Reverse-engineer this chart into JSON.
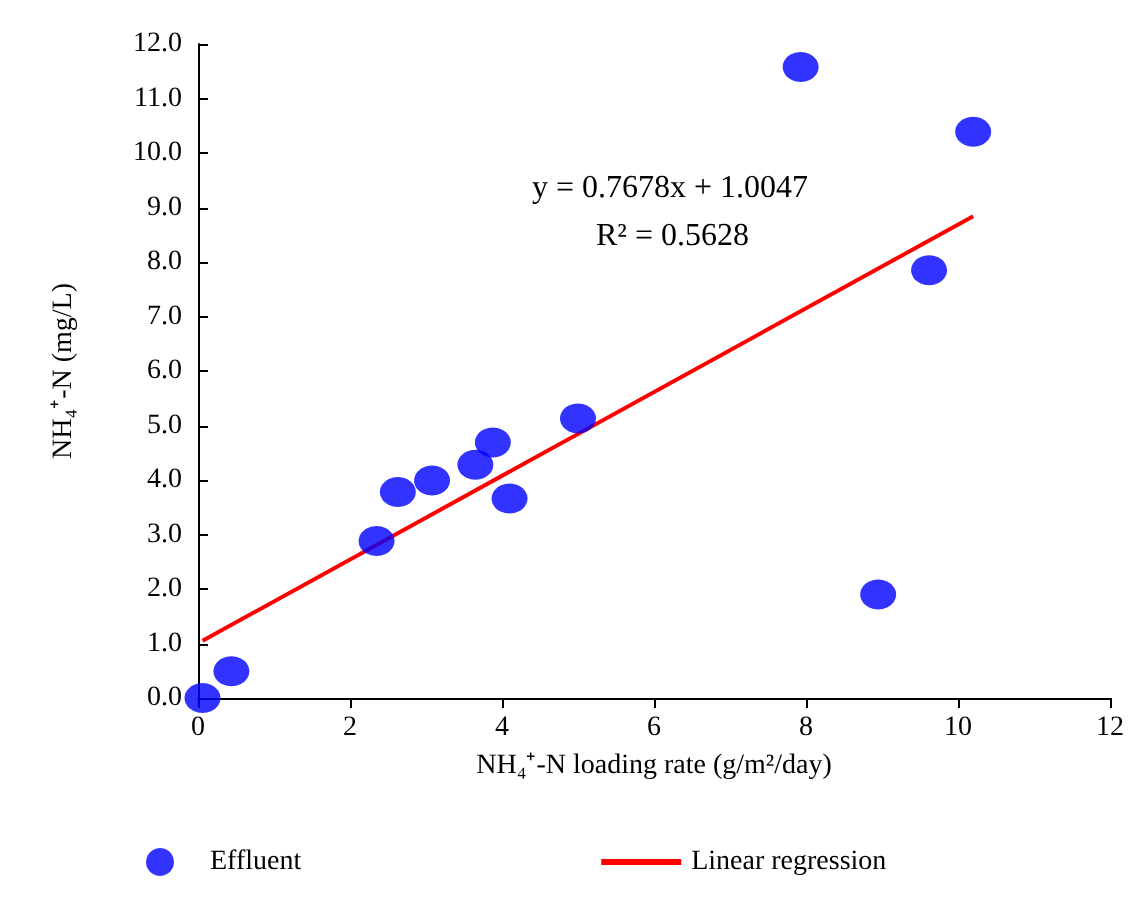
{
  "chart_data": {
    "type": "scatter",
    "xlabel": "NH₄⁺-N loading rate (g/m²/day)",
    "ylabel": "NH₄⁺-N (mg/L)",
    "series": [
      {
        "name": "Effluent",
        "color": "#0000ff",
        "marker": "circle",
        "x": [
          0.06,
          0.44,
          2.35,
          2.63,
          3.08,
          3.65,
          3.88,
          4.1,
          5.0,
          7.93,
          8.95,
          9.62,
          10.2
        ],
        "values": [
          0.0,
          0.49,
          2.88,
          3.78,
          3.99,
          4.28,
          4.69,
          3.66,
          5.13,
          11.58,
          1.9,
          7.85,
          10.39
        ]
      },
      {
        "name": "Linear regression",
        "type": "line",
        "color": "#ff0000",
        "marker": "none",
        "line_style": "solid",
        "x": [
          0.06,
          10.2
        ],
        "values": [
          1.05,
          8.84
        ]
      }
    ],
    "annotations": [
      "y = 0.7678x + 1.0047",
      "R² = 0.5628"
    ],
    "xlim": [
      0,
      12
    ],
    "xticks": [
      0,
      2,
      4,
      6,
      8,
      10,
      12
    ],
    "ylim": [
      0,
      12
    ],
    "yticks": [
      {
        "value": 0,
        "label": "0.0"
      },
      {
        "value": 1,
        "label": "1.0"
      },
      {
        "value": 2,
        "label": "2.0"
      },
      {
        "value": 3,
        "label": "3.0"
      },
      {
        "value": 4,
        "label": "4.0"
      },
      {
        "value": 5,
        "label": "5.0"
      },
      {
        "value": 6,
        "label": "6.0"
      },
      {
        "value": 7,
        "label": "7.0"
      },
      {
        "value": 8,
        "label": "8.0"
      },
      {
        "value": 9,
        "label": "9.0"
      },
      {
        "value": 10,
        "label": "10.0"
      },
      {
        "value": 11,
        "label": "11.0"
      },
      {
        "value": 12,
        "label": "12.0"
      }
    ],
    "grid": false,
    "legend": "bottom"
  }
}
